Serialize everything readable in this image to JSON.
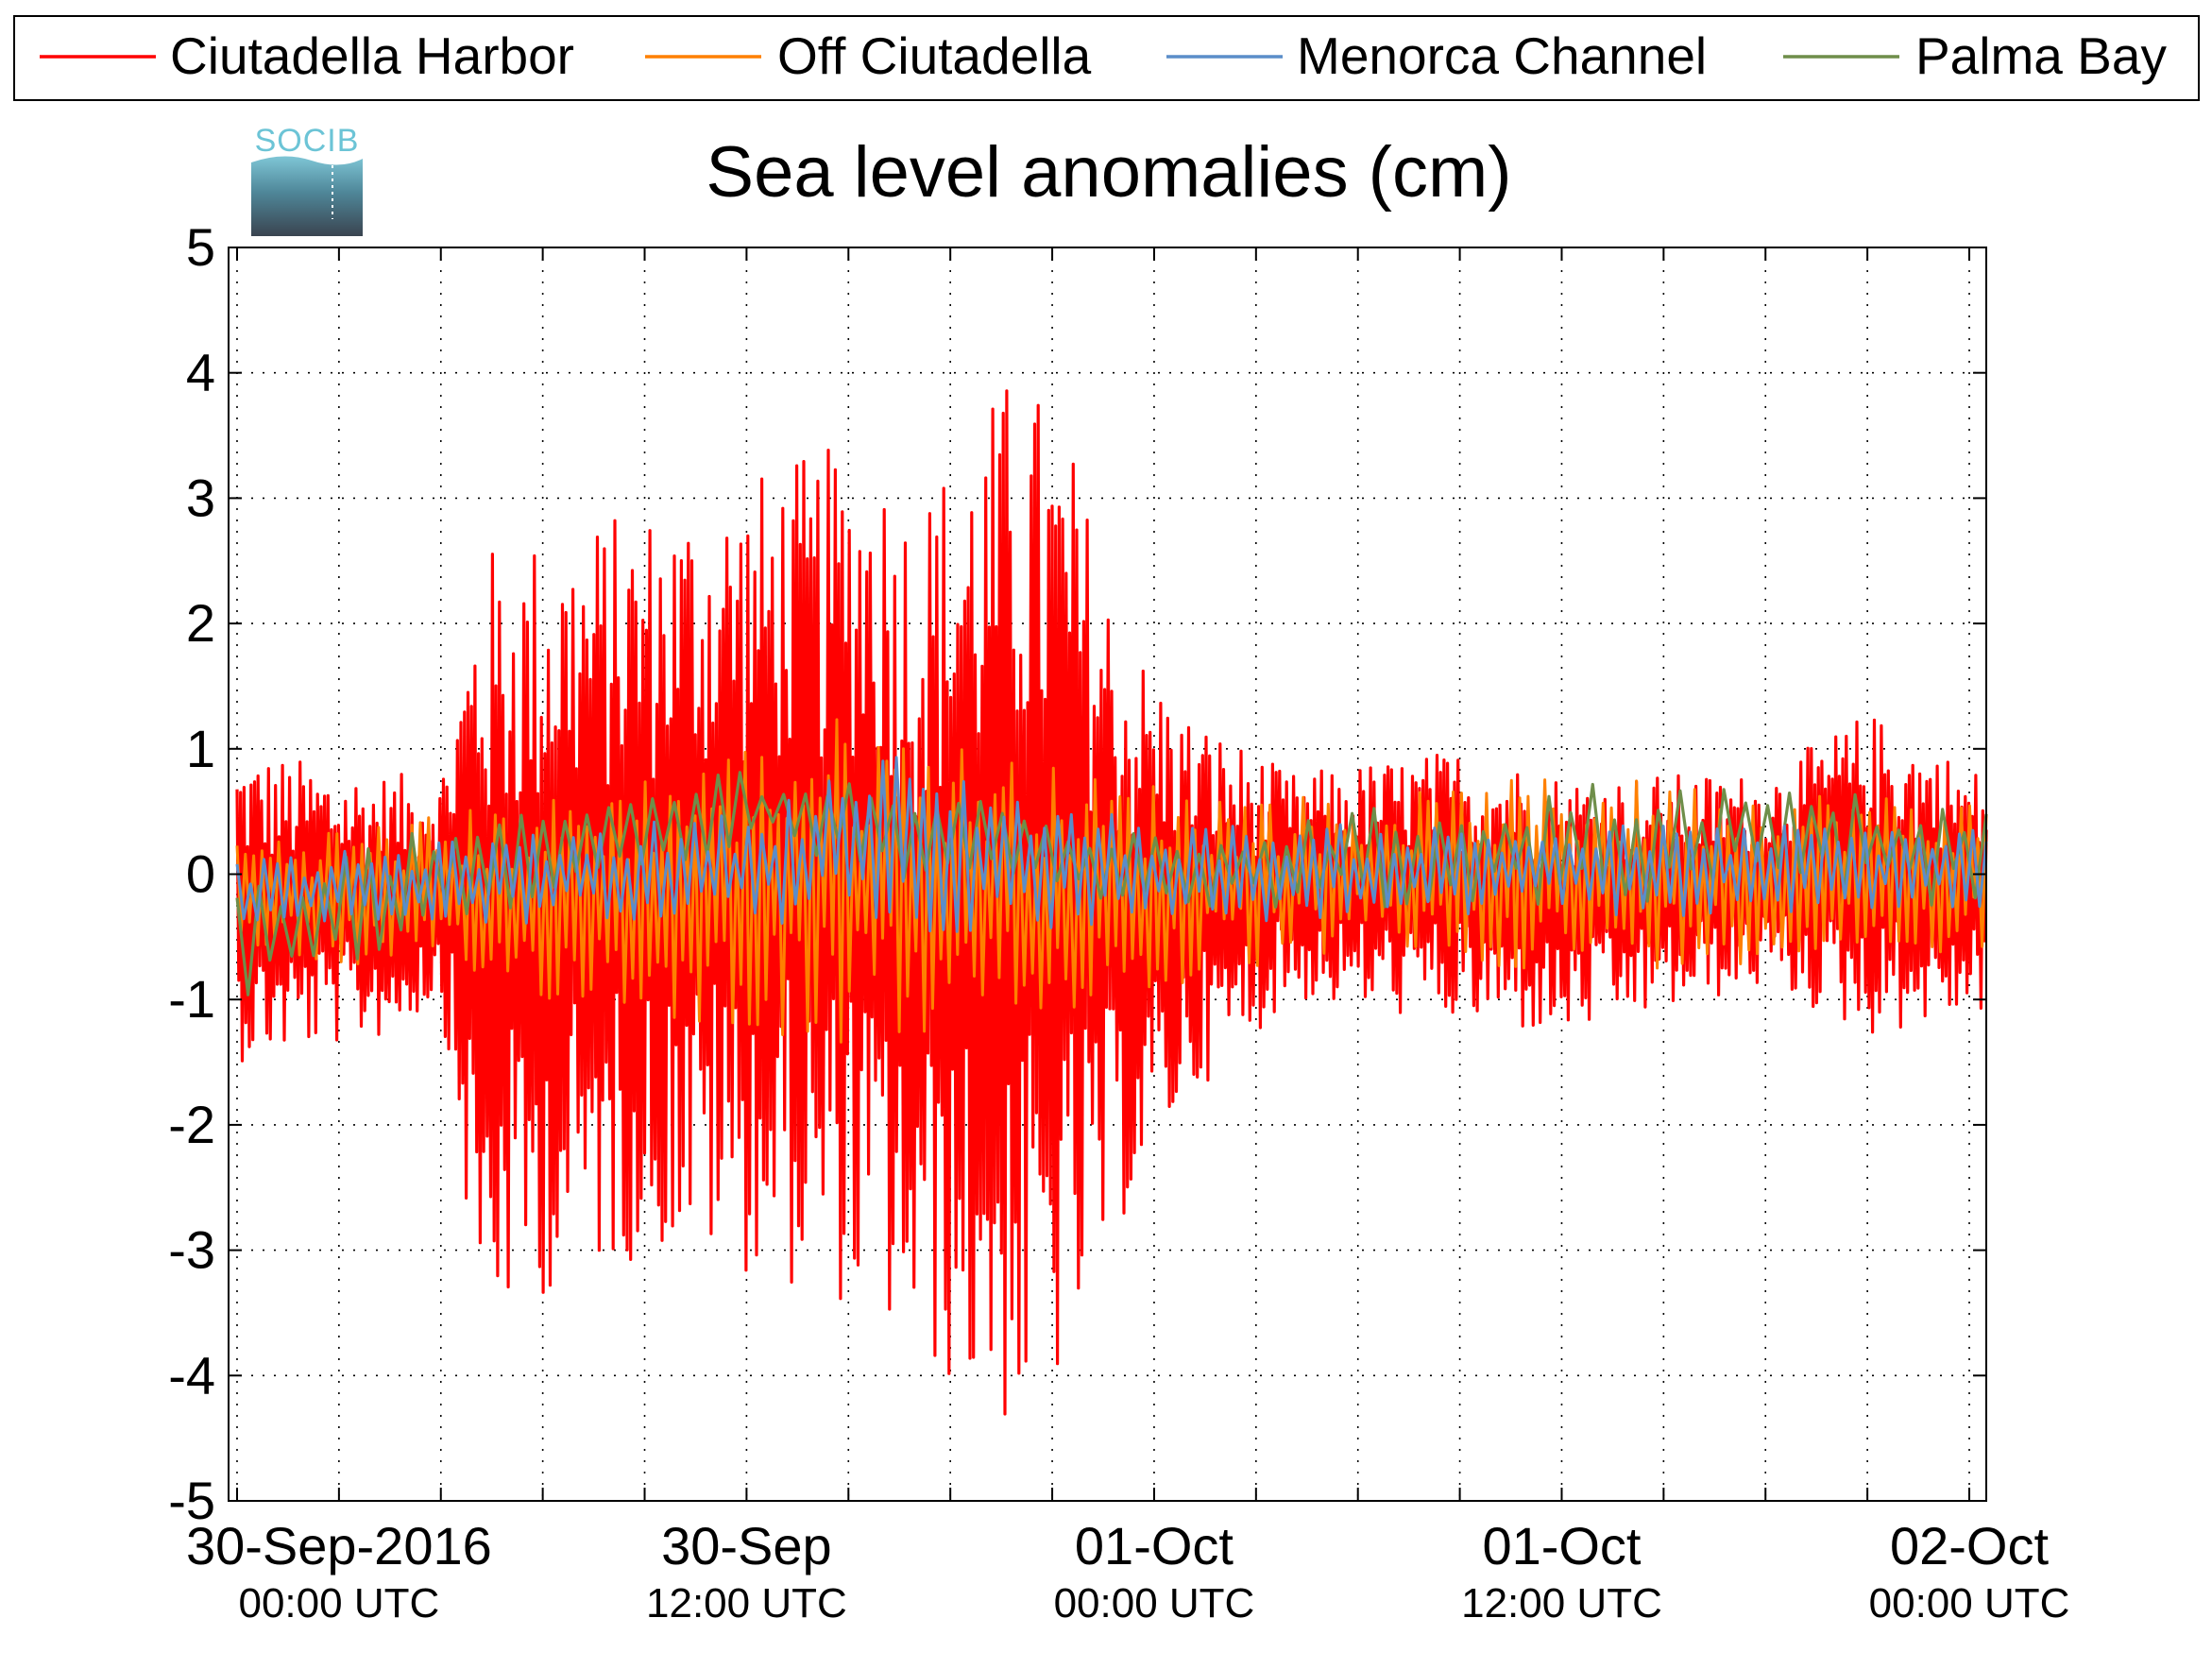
{
  "chart_data": {
    "type": "line",
    "title": "Sea level anomalies (cm)",
    "logo_text": "SOCIB",
    "ylim": [
      -5,
      5
    ],
    "y_ticks": [
      5,
      4,
      3,
      2,
      1,
      0,
      -1,
      -2,
      -3,
      -4,
      -5
    ],
    "y_tick_labels": [
      "5",
      "4",
      "3",
      "2",
      "1",
      "0",
      "-1",
      "-2",
      "-3",
      "-4",
      "-5"
    ],
    "xlim": [
      "2016-09-29T20:45",
      "2016-10-02T00:30"
    ],
    "x_ticks": [
      {
        "time": "2016-09-30T00:00",
        "date_label": "30-Sep-2016",
        "time_label": "00:00 UTC"
      },
      {
        "time": "2016-09-30T12:00",
        "date_label": "30-Sep",
        "time_label": "12:00 UTC"
      },
      {
        "time": "2016-10-01T00:00",
        "date_label": "01-Oct",
        "time_label": "00:00 UTC"
      },
      {
        "time": "2016-10-01T12:00",
        "date_label": "01-Oct",
        "time_label": "12:00 UTC"
      },
      {
        "time": "2016-10-02T00:00",
        "date_label": "02-Oct",
        "time_label": "00:00 UTC"
      }
    ],
    "grid": true,
    "legend_position": "top",
    "series": [
      {
        "name": "Ciutadella Harbor",
        "color": "#ff0000",
        "envelope": [
          {
            "time": "2016-09-29T21:00",
            "max": 1.0,
            "min": -1.5
          },
          {
            "time": "2016-09-30T01:30",
            "max": 0.8,
            "min": -1.3
          },
          {
            "time": "2016-09-30T03:00",
            "max": 0.8,
            "min": -1.0
          },
          {
            "time": "2016-09-30T04:10",
            "max": 2.6,
            "min": -3.7
          },
          {
            "time": "2016-09-30T07:00",
            "max": 2.8,
            "min": -3.2
          },
          {
            "time": "2016-09-30T10:00",
            "max": 3.0,
            "min": -3.0
          },
          {
            "time": "2016-09-30T15:30",
            "max": 3.5,
            "min": -3.5
          },
          {
            "time": "2016-09-30T17:00",
            "max": 3.0,
            "min": -3.9
          },
          {
            "time": "2016-09-30T20:00",
            "max": 4.1,
            "min": -4.5
          },
          {
            "time": "2016-09-30T21:30",
            "max": 3.5,
            "min": -4.0
          },
          {
            "time": "2016-09-30T23:00",
            "max": 2.0,
            "min": -2.8
          },
          {
            "time": "2016-10-01T01:00",
            "max": 1.3,
            "min": -1.8
          },
          {
            "time": "2016-10-01T04:00",
            "max": 0.8,
            "min": -1.0
          },
          {
            "time": "2016-10-01T09:00",
            "max": 1.0,
            "min": -1.2
          },
          {
            "time": "2016-10-01T12:00",
            "max": 0.8,
            "min": -1.3
          },
          {
            "time": "2016-10-01T18:00",
            "max": 0.8,
            "min": -0.9
          },
          {
            "time": "2016-10-01T21:00",
            "max": 1.3,
            "min": -1.3
          },
          {
            "time": "2016-10-02T00:30",
            "max": 0.8,
            "min": -1.1
          }
        ]
      },
      {
        "name": "Off Ciutadella",
        "color": "#ff8000",
        "envelope": [
          {
            "time": "2016-09-29T21:00",
            "max": 0.3,
            "min": -0.6
          },
          {
            "time": "2016-09-30T06:00",
            "max": 0.6,
            "min": -1.0
          },
          {
            "time": "2016-09-30T15:00",
            "max": 1.3,
            "min": -1.4
          },
          {
            "time": "2016-09-30T22:00",
            "max": 0.8,
            "min": -1.1
          },
          {
            "time": "2016-10-01T06:00",
            "max": 0.6,
            "min": -0.6
          },
          {
            "time": "2016-10-01T12:00",
            "max": 0.8,
            "min": -0.8
          },
          {
            "time": "2016-10-02T00:30",
            "max": 0.6,
            "min": -0.6
          }
        ]
      },
      {
        "name": "Menorca Channel",
        "color": "#5b8dc9",
        "envelope": [
          {
            "time": "2016-09-29T21:00",
            "max": 0.1,
            "min": -0.4
          },
          {
            "time": "2016-09-30T12:00",
            "max": 0.5,
            "min": -0.4
          },
          {
            "time": "2016-09-30T16:00",
            "max": 1.0,
            "min": -0.5
          },
          {
            "time": "2016-10-01T00:00",
            "max": 0.4,
            "min": -0.4
          },
          {
            "time": "2016-10-02T00:30",
            "max": 0.4,
            "min": -0.3
          }
        ]
      },
      {
        "name": "Palma Bay",
        "color": "#6f8e4a",
        "envelope": [
          {
            "time": "2016-09-29T21:00",
            "max": 0.1,
            "min": -1.1
          },
          {
            "time": "2016-09-30T06:00",
            "max": 0.5,
            "min": -0.2
          },
          {
            "time": "2016-09-30T12:00",
            "max": 0.9,
            "min": 0.2
          },
          {
            "time": "2016-09-30T15:00",
            "max": 0.8,
            "min": 0.0
          },
          {
            "time": "2016-10-01T00:00",
            "max": 0.3,
            "min": -0.3
          },
          {
            "time": "2016-10-01T14:00",
            "max": 0.8,
            "min": -0.3
          },
          {
            "time": "2016-10-01T17:00",
            "max": 0.7,
            "min": -0.1
          },
          {
            "time": "2016-10-02T00:30",
            "max": 0.6,
            "min": -0.3
          }
        ]
      }
    ]
  }
}
